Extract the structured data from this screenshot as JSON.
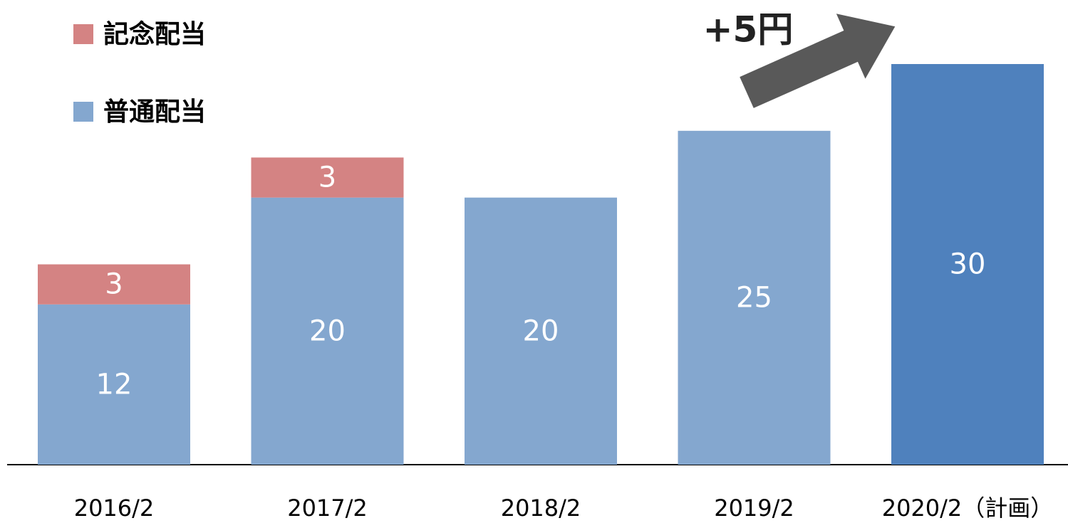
{
  "chart_data": {
    "type": "stacked_bar",
    "categories": [
      "2016/2",
      "2017/2",
      "2018/2",
      "2019/2",
      "2020/2（計画）"
    ],
    "series": [
      {
        "name": "普通配当",
        "color": "#84a7cf",
        "colors": [
          "#84a7cf",
          "#84a7cf",
          "#84a7cf",
          "#84a7cf",
          "#4f81bd"
        ],
        "values": [
          12,
          20,
          20,
          25,
          30
        ]
      },
      {
        "name": "記念配当",
        "color": "#d48383",
        "values": [
          3,
          3,
          null,
          null,
          null
        ]
      }
    ],
    "annotation": "+5円",
    "legend": "top-left"
  }
}
